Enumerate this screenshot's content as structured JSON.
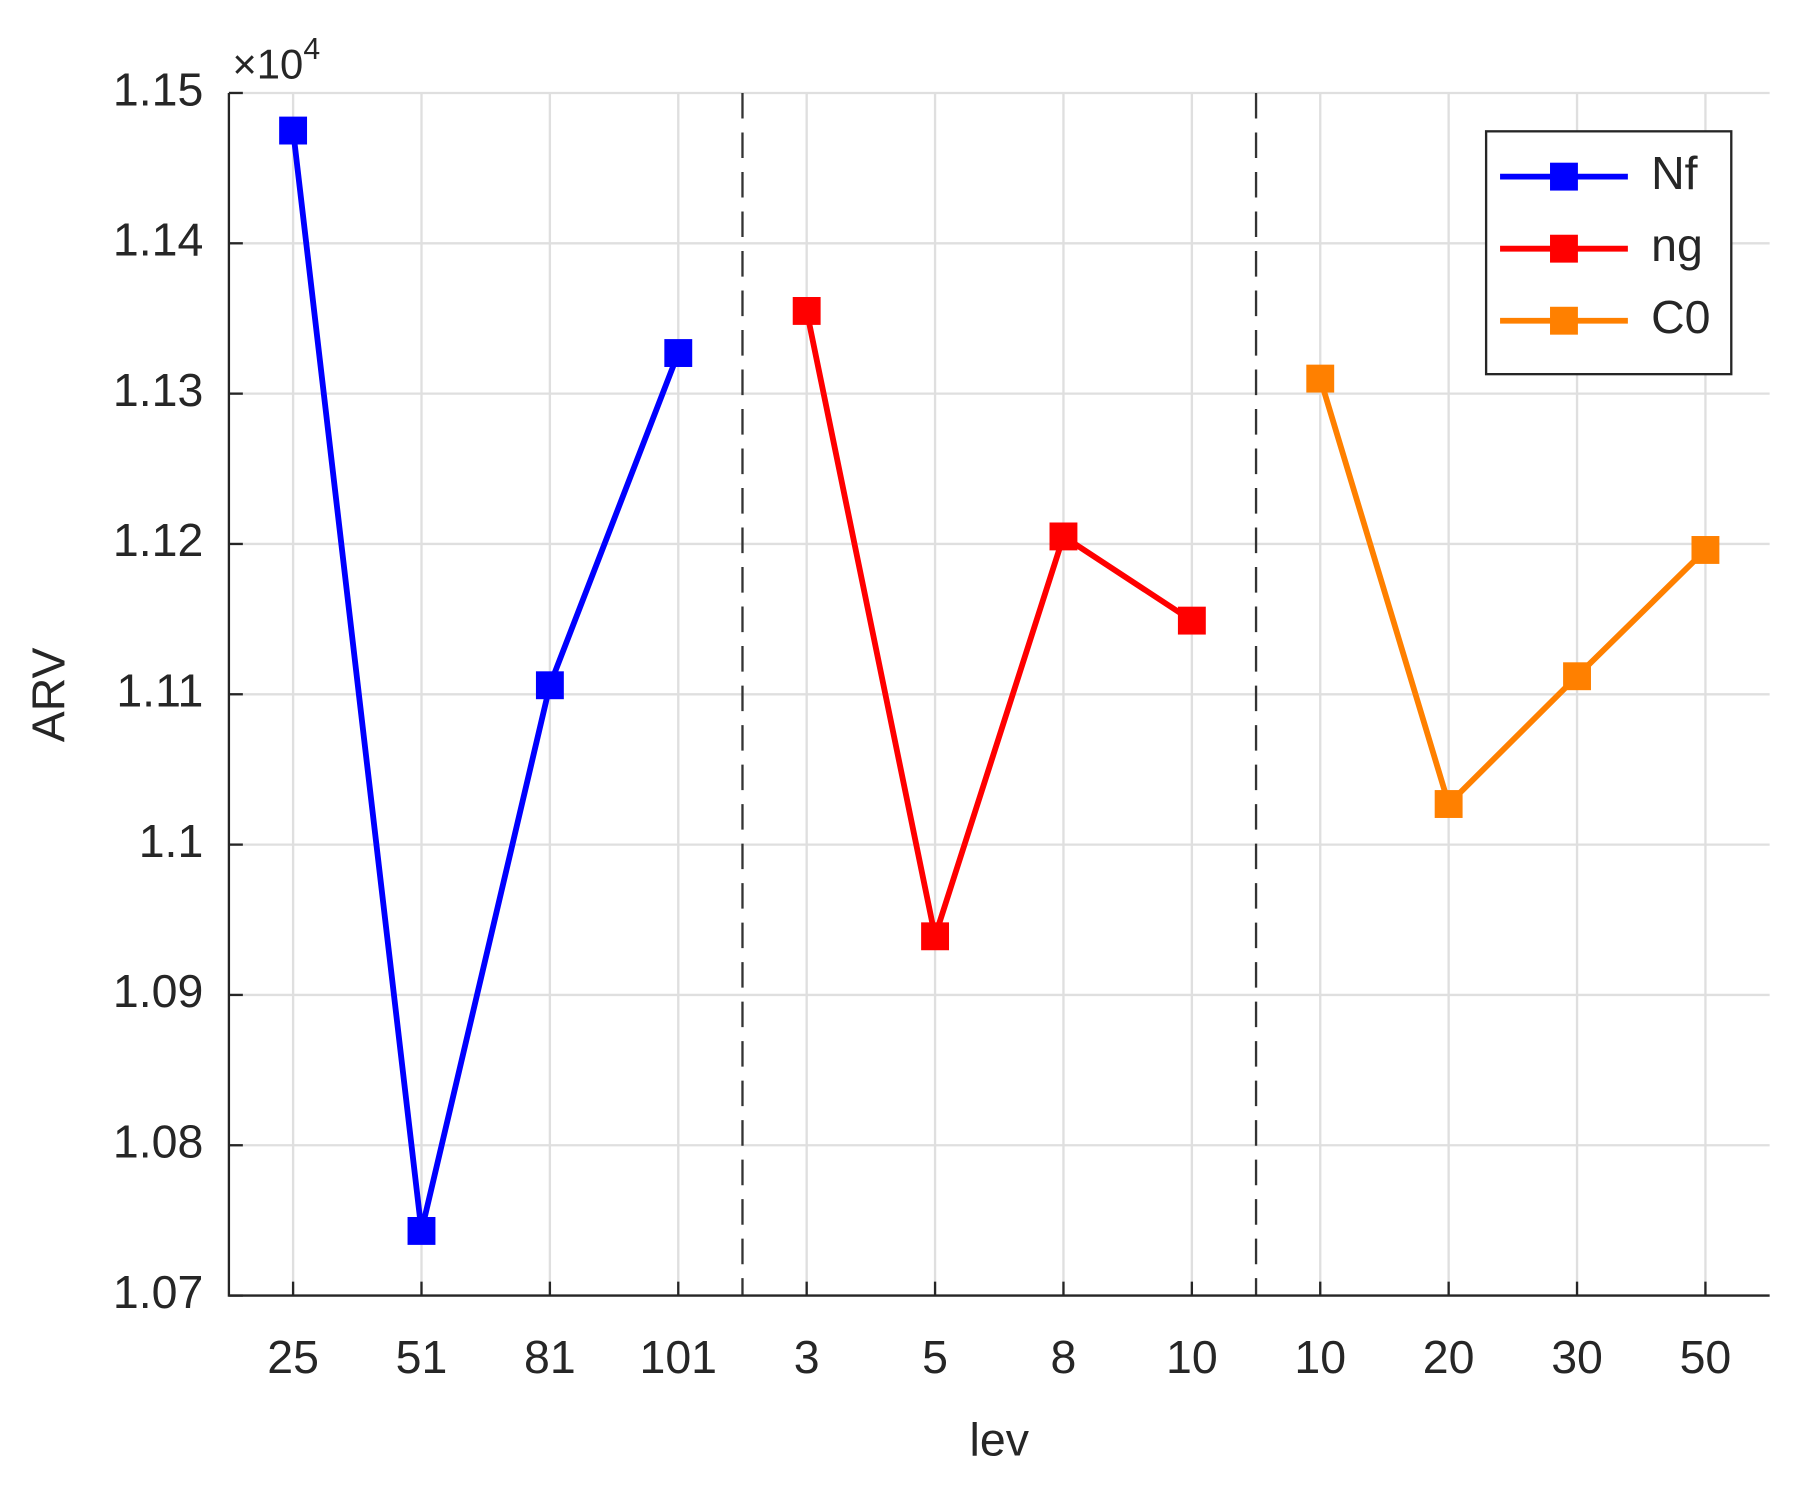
{
  "chart_data": {
    "type": "line",
    "x_label": "lev",
    "y_label": "ARV",
    "y_multiplier": {
      "base": "×10",
      "power": "4"
    },
    "categories": [
      "25",
      "51",
      "81",
      "101",
      "3",
      "5",
      "8",
      "10",
      "10",
      "20",
      "30",
      "50"
    ],
    "series": [
      {
        "name": "Nf",
        "color": "#0000ff",
        "values": [
          1.1475,
          1.0743,
          1.1106,
          1.1327,
          null,
          null,
          null,
          null,
          null,
          null,
          null,
          null
        ]
      },
      {
        "name": "ng",
        "color": "#ff0000",
        "values": [
          null,
          null,
          null,
          null,
          1.1355,
          1.0939,
          1.1205,
          1.1149,
          null,
          null,
          null,
          null
        ]
      },
      {
        "name": "C0",
        "color": "#ff8000",
        "values": [
          null,
          null,
          null,
          null,
          null,
          null,
          null,
          null,
          1.131,
          1.1027,
          1.1112,
          1.1196
        ]
      }
    ],
    "ylim": [
      1.07,
      1.15
    ],
    "yticks": [
      1.07,
      1.08,
      1.09,
      {
        "value": 1.1,
        "label": "1.1"
      },
      1.11,
      1.12,
      1.13,
      1.14,
      1.15
    ],
    "grid": true,
    "legend": "upper right",
    "marker": "square"
  }
}
